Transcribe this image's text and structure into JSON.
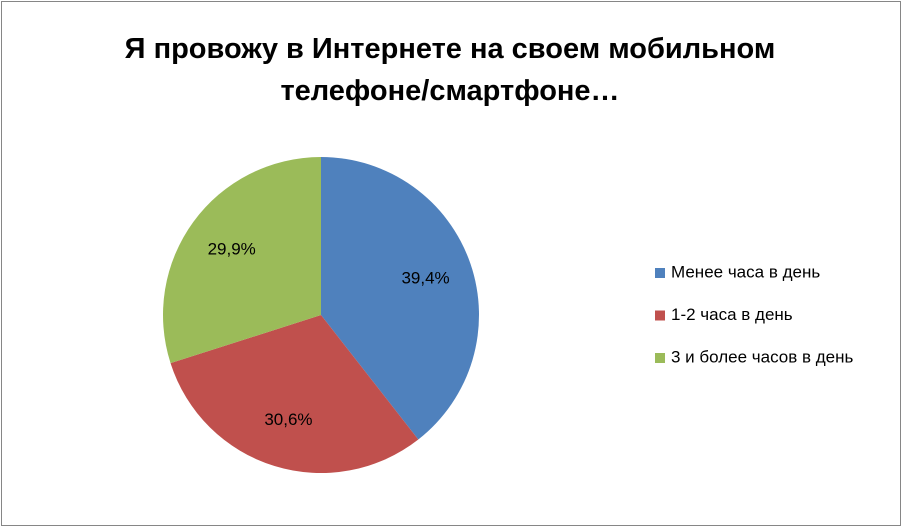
{
  "chart_data": {
    "type": "pie",
    "title": "Я провожу в Интернете на своем мобильном телефоне/смартфоне…",
    "categories": [
      "Менее часа в день",
      "1-2 часа в день",
      "3 и более часов в день"
    ],
    "values": [
      39.4,
      30.6,
      29.9
    ],
    "value_labels": [
      "39,4%",
      "30,6%",
      "29,9%"
    ],
    "colors": [
      "#4f81bd",
      "#c0504d",
      "#9bbb59"
    ],
    "legend": "right"
  }
}
